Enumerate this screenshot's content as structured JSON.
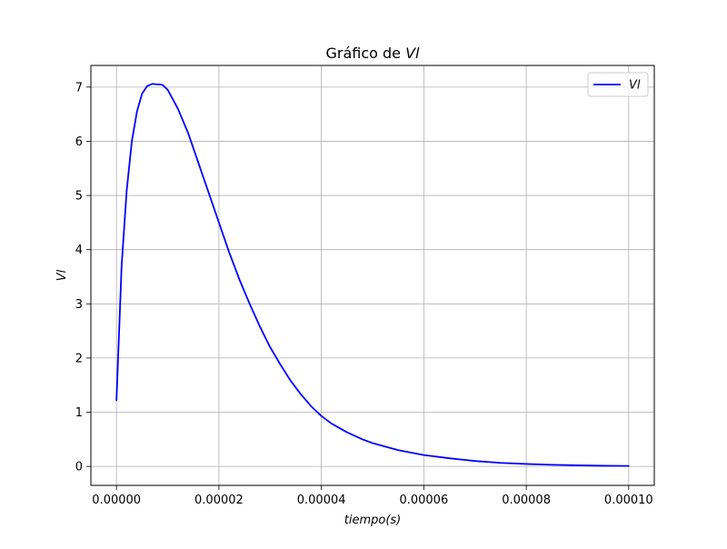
{
  "chart_data": {
    "type": "line",
    "title_prefix": "Gráfico de ",
    "title_var": "Vl",
    "xlabel": "tiempo(s)",
    "ylabel": "Vl",
    "xlim": [
      -5e-06,
      0.000105
    ],
    "ylim": [
      -0.35,
      7.4
    ],
    "grid": true,
    "legend_position": "upper right",
    "x_ticks": [
      0,
      2e-05,
      4e-05,
      6e-05,
      8e-05,
      0.0001
    ],
    "x_tick_labels": [
      "0.00000",
      "0.00002",
      "0.00004",
      "0.00006",
      "0.00008",
      "0.00010"
    ],
    "y_ticks": [
      0,
      1,
      2,
      3,
      4,
      5,
      6,
      7
    ],
    "y_tick_labels": [
      "0",
      "1",
      "2",
      "3",
      "4",
      "5",
      "6",
      "7"
    ],
    "series": [
      {
        "name": "Vl",
        "color": "#0000ff",
        "x": [
          0,
          1e-06,
          2e-06,
          3e-06,
          4e-06,
          5e-06,
          6e-06,
          7e-06,
          8e-06,
          8.5e-06,
          9e-06,
          1e-05,
          1.2e-05,
          1.4e-05,
          1.6e-05,
          1.8e-05,
          2e-05,
          2.2e-05,
          2.4e-05,
          2.6e-05,
          2.8e-05,
          3e-05,
          3.2e-05,
          3.4e-05,
          3.6e-05,
          3.8e-05,
          4e-05,
          4.2e-05,
          4.5e-05,
          4.8e-05,
          5e-05,
          5.5e-05,
          6e-05,
          6.5e-05,
          7e-05,
          7.5e-05,
          8e-05,
          8.5e-05,
          9e-05,
          9.5e-05,
          0.0001
        ],
        "y": [
          1.22,
          3.7,
          5.1,
          6.0,
          6.55,
          6.88,
          7.02,
          7.06,
          7.05,
          7.05,
          7.04,
          6.95,
          6.6,
          6.15,
          5.6,
          5.05,
          4.5,
          3.95,
          3.45,
          3.0,
          2.58,
          2.2,
          1.88,
          1.58,
          1.33,
          1.11,
          0.93,
          0.79,
          0.63,
          0.5,
          0.43,
          0.3,
          0.21,
          0.15,
          0.1,
          0.065,
          0.045,
          0.03,
          0.02,
          0.012,
          0.008
        ]
      }
    ]
  }
}
